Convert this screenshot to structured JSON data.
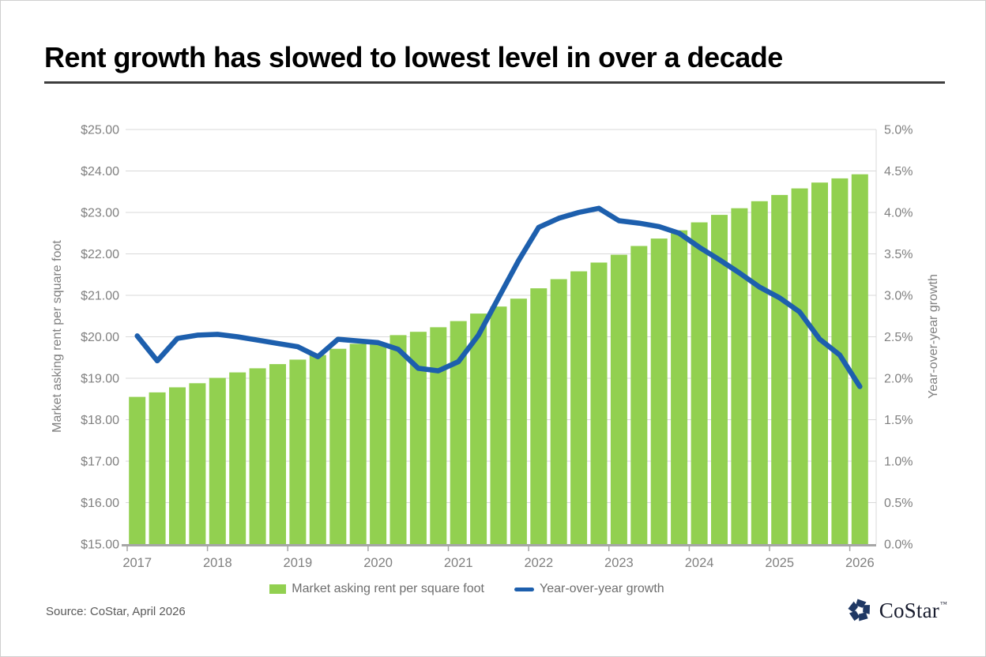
{
  "page": {
    "title": "Rent growth has slowed to lowest level in over a decade",
    "source": "Source: CoStar, April 2026",
    "brand": {
      "name": "CoStar",
      "tm": "™"
    }
  },
  "colors": {
    "bar_green": "#92D050",
    "line_blue": "#1D5FAD",
    "gridline": "#D9D9D9",
    "axis_line": "#A6A6A6",
    "tick_text": "#808080",
    "logo_navy": "#1F3864"
  },
  "chart_data": {
    "type": "bar",
    "subtype": "bar+line combo, dual axis, quarterly",
    "title": "Rent growth has slowed to lowest level in over a decade",
    "grid": true,
    "legend_position": "bottom",
    "categories": [
      "2017 Q1",
      "2017 Q2",
      "2017 Q3",
      "2017 Q4",
      "2018 Q1",
      "2018 Q2",
      "2018 Q3",
      "2018 Q4",
      "2019 Q1",
      "2019 Q2",
      "2019 Q3",
      "2019 Q4",
      "2020 Q1",
      "2020 Q2",
      "2020 Q3",
      "2020 Q4",
      "2021 Q1",
      "2021 Q2",
      "2021 Q3",
      "2021 Q4",
      "2022 Q1",
      "2022 Q2",
      "2022 Q3",
      "2022 Q4",
      "2023 Q1",
      "2023 Q2",
      "2023 Q3",
      "2023 Q4",
      "2024 Q1",
      "2024 Q2",
      "2024 Q3",
      "2024 Q4",
      "2025 Q1",
      "2025 Q2",
      "2025 Q3",
      "2025 Q4",
      "2026 Q1"
    ],
    "year_labels": [
      "2017",
      "2018",
      "2019",
      "2020",
      "2021",
      "2022",
      "2023",
      "2024",
      "2025",
      "2026"
    ],
    "series": [
      {
        "name": "Market asking rent per square foot",
        "type": "bar",
        "axis": "left",
        "color": "#92D050",
        "values": [
          18.55,
          18.66,
          18.78,
          18.88,
          19.01,
          19.14,
          19.24,
          19.34,
          19.45,
          19.56,
          19.71,
          19.83,
          19.86,
          20.04,
          20.12,
          20.23,
          20.38,
          20.56,
          20.73,
          20.92,
          21.17,
          21.39,
          21.58,
          21.79,
          21.98,
          22.19,
          22.37,
          22.57,
          22.76,
          22.94,
          23.1,
          23.27,
          23.42,
          23.58,
          23.72,
          23.82,
          23.92
        ]
      },
      {
        "name": "Year-over-year growth",
        "type": "line",
        "axis": "right",
        "color": "#1D5FAD",
        "values": [
          2.51,
          2.21,
          2.48,
          2.52,
          2.53,
          2.5,
          2.46,
          2.42,
          2.38,
          2.26,
          2.47,
          2.45,
          2.43,
          2.35,
          2.12,
          2.09,
          2.2,
          2.52,
          2.97,
          3.42,
          3.82,
          3.93,
          4.0,
          4.05,
          3.9,
          3.87,
          3.83,
          3.75,
          3.58,
          3.43,
          3.27,
          3.1,
          2.97,
          2.8,
          2.47,
          2.28,
          1.9
        ]
      }
    ],
    "left_axis": {
      "title": "Market asking rent per square foot",
      "min": 15,
      "max": 25,
      "step": 1,
      "tick_format": "$#.00"
    },
    "right_axis": {
      "title": "Year-over-year growth",
      "min": 0,
      "max": 5,
      "step": 0.5,
      "tick_format": "#.0%"
    }
  }
}
